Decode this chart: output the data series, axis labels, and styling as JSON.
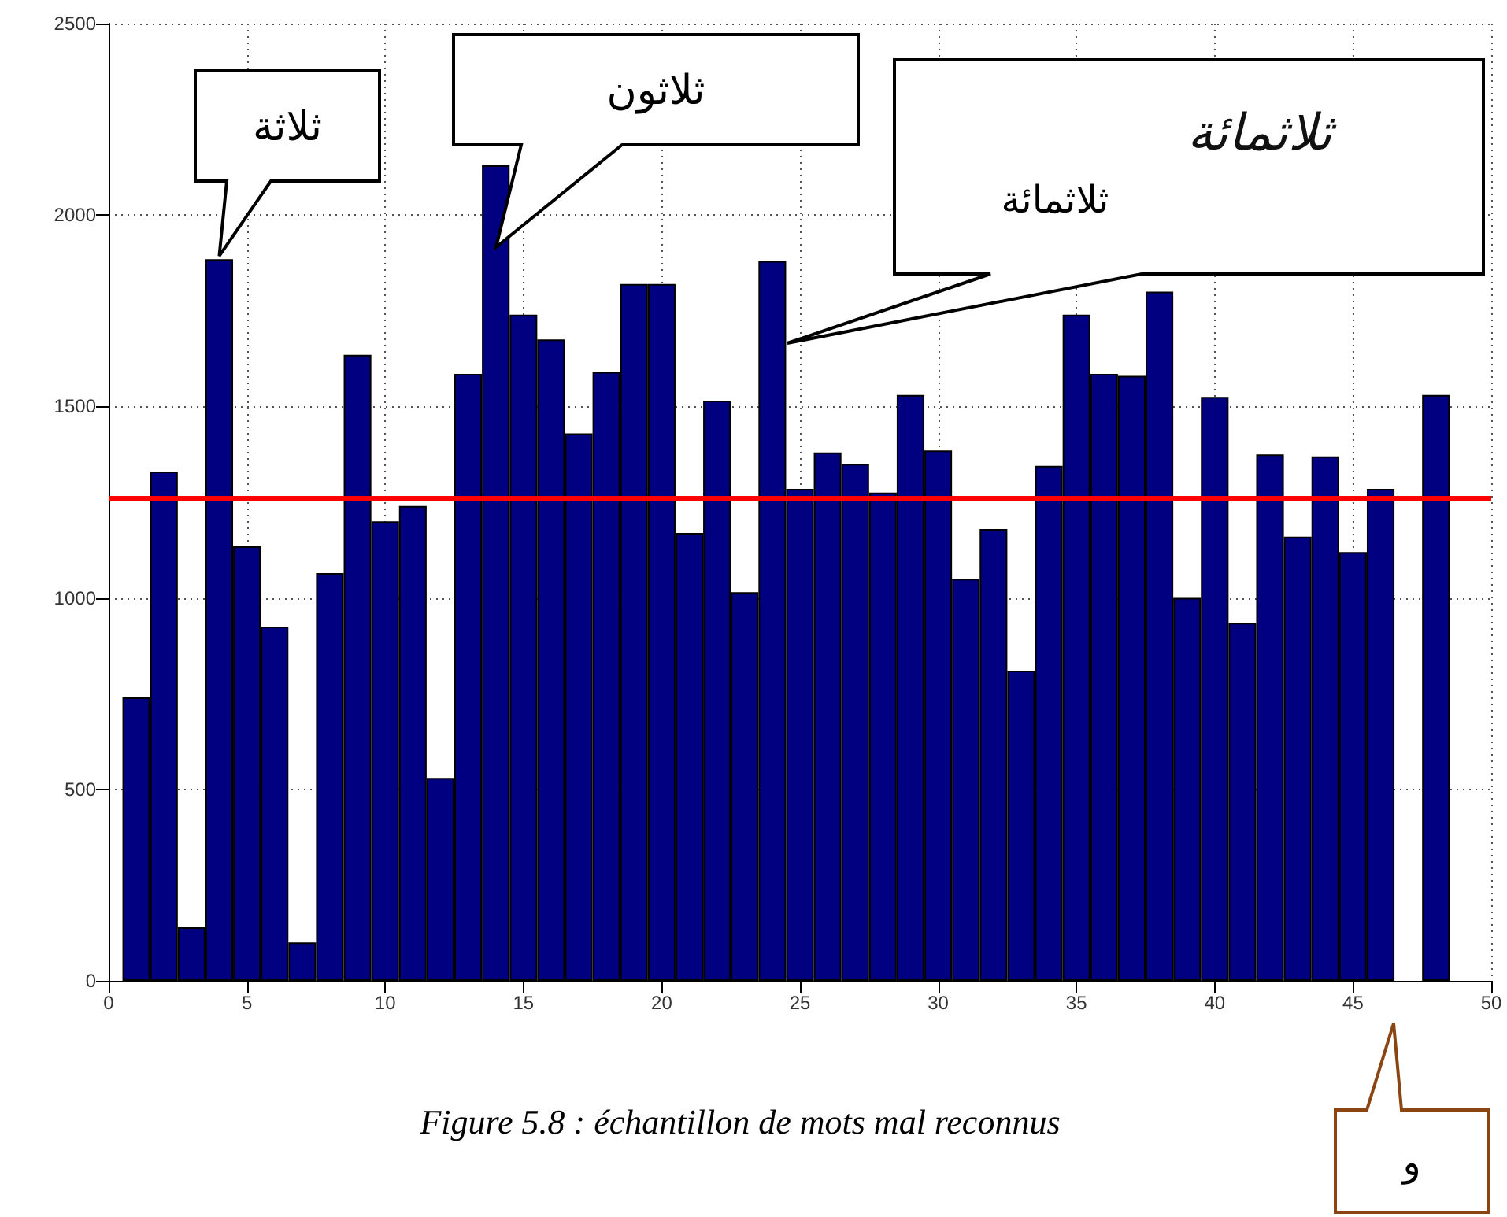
{
  "chart_data": {
    "type": "bar",
    "x": [
      1,
      2,
      3,
      4,
      5,
      6,
      7,
      8,
      9,
      10,
      11,
      12,
      13,
      14,
      15,
      16,
      17,
      18,
      19,
      20,
      21,
      22,
      23,
      24,
      25,
      26,
      27,
      28,
      29,
      30,
      31,
      32,
      33,
      34,
      35,
      36,
      37,
      38,
      39,
      40,
      41,
      42,
      43,
      44,
      45,
      46,
      47,
      48
    ],
    "values": [
      740,
      1330,
      140,
      1885,
      1135,
      925,
      100,
      1065,
      1635,
      1200,
      1240,
      530,
      1585,
      2130,
      1740,
      1675,
      1430,
      1590,
      1820,
      1820,
      1170,
      1515,
      1015,
      1880,
      1285,
      1380,
      1350,
      1275,
      1530,
      1385,
      1050,
      1180,
      810,
      1345,
      1740,
      1585,
      1580,
      1800,
      1000,
      1525,
      935,
      1375,
      1160,
      1370,
      1120,
      1285,
      null,
      1530
    ],
    "color": "#000080",
    "xlim": [
      0,
      50
    ],
    "xticks": [
      0,
      5,
      10,
      15,
      20,
      25,
      30,
      35,
      40,
      45,
      50
    ],
    "ylim": [
      0,
      2500
    ],
    "yticks": [
      0,
      500,
      1000,
      1500,
      2000,
      2500
    ],
    "grid": true,
    "ref_lines": [
      {
        "axis": "y",
        "value": 1260,
        "color": "#ff0000"
      }
    ],
    "annotations": [
      {
        "text": "ثلاثة",
        "x": 4,
        "y": 1885
      },
      "ثلاثون",
      "ثلاثمائة",
      "ثلاثمائة",
      "و",
      "Figure 5.8 : échantillon de mots mal reconnus"
    ]
  }
}
